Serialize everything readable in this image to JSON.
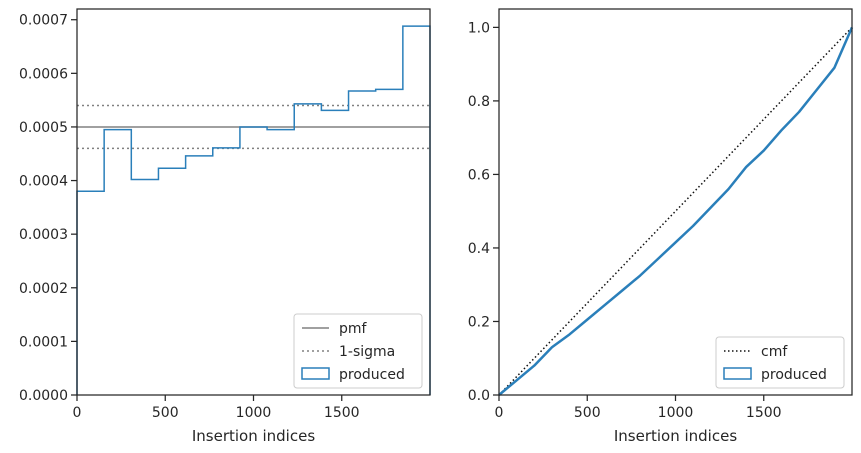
{
  "colors": {
    "produced": "#2a7fba",
    "pmf": "#808080",
    "sigma": "#808080",
    "cmf": "#111111",
    "axes": "#262626"
  },
  "chart_data": [
    {
      "type": "line",
      "xlabel": "Insertion indices",
      "ylabel": "",
      "xlim": [
        0,
        2000
      ],
      "ylim": [
        0,
        0.00072
      ],
      "x_ticks": [
        0,
        500,
        1000,
        1500
      ],
      "x_tick_labels": [
        "0",
        "500",
        "1000",
        "1500"
      ],
      "y_ticks": [
        0,
        0.0001,
        0.0002,
        0.0003,
        0.0004,
        0.0005,
        0.0006,
        0.0007
      ],
      "y_tick_labels": [
        "0.0000",
        "0.0001",
        "0.0002",
        "0.0003",
        "0.0004",
        "0.0005",
        "0.0006",
        "0.0007"
      ],
      "legend_position": "lower-right",
      "pmf": 0.0005,
      "sigma_band": [
        0.00046,
        0.00054
      ],
      "series": [
        {
          "name": "produced",
          "style": "step",
          "bin_edges": [
            0,
            153.8,
            307.7,
            461.5,
            615.4,
            769.2,
            923.1,
            1076.9,
            1230.8,
            1384.6,
            1538.5,
            1692.3,
            1846.2,
            2000
          ],
          "values": [
            0.00038,
            0.000495,
            0.000402,
            0.000423,
            0.000446,
            0.000461,
            0.0005,
            0.000495,
            0.000543,
            0.000531,
            0.000567,
            0.00057,
            0.000688
          ]
        }
      ],
      "legend": [
        "pmf",
        "1-sigma",
        "produced"
      ]
    },
    {
      "type": "line",
      "xlabel": "Insertion indices",
      "ylabel": "",
      "xlim": [
        0,
        2000
      ],
      "ylim": [
        0,
        1.05
      ],
      "x_ticks": [
        0,
        500,
        1000,
        1500
      ],
      "x_tick_labels": [
        "0",
        "500",
        "1000",
        "1500"
      ],
      "y_ticks": [
        0,
        0.2,
        0.4,
        0.6,
        0.8,
        1.0
      ],
      "y_tick_labels": [
        "0.0",
        "0.2",
        "0.4",
        "0.6",
        "0.8",
        "1.0"
      ],
      "legend_position": "lower-right",
      "cmf": {
        "x": [
          0,
          2000
        ],
        "y": [
          0,
          1.0
        ]
      },
      "series": [
        {
          "name": "produced",
          "style": "step",
          "x": [
            0,
            100,
            200,
            300,
            400,
            500,
            600,
            700,
            800,
            900,
            1000,
            1100,
            1200,
            1300,
            1400,
            1500,
            1600,
            1700,
            1800,
            1900,
            2000
          ],
          "y": [
            0,
            0.04,
            0.08,
            0.13,
            0.165,
            0.205,
            0.245,
            0.285,
            0.325,
            0.37,
            0.415,
            0.46,
            0.51,
            0.56,
            0.62,
            0.665,
            0.72,
            0.77,
            0.83,
            0.89,
            1.0
          ]
        }
      ],
      "legend": [
        "cmf",
        "produced"
      ]
    }
  ]
}
